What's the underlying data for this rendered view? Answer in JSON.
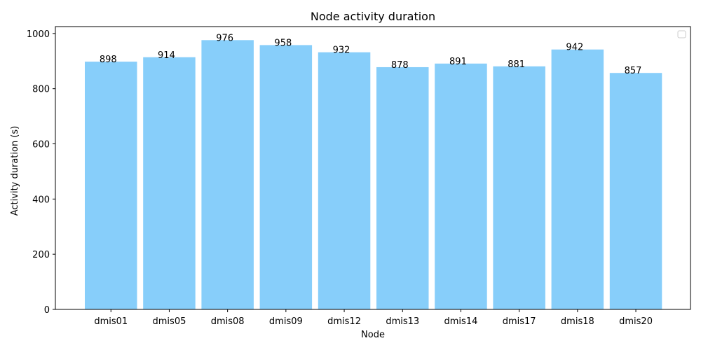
{
  "chart_data": {
    "type": "bar",
    "title": "Node activity duration",
    "xlabel": "Node",
    "ylabel": "Activity duration (s)",
    "categories": [
      "dmis01",
      "dmis05",
      "dmis08",
      "dmis09",
      "dmis12",
      "dmis13",
      "dmis14",
      "dmis17",
      "dmis18",
      "dmis20"
    ],
    "values": [
      898,
      914,
      976,
      958,
      932,
      878,
      891,
      881,
      942,
      857
    ],
    "data_labels": [
      "898",
      "914",
      "976",
      "958",
      "932",
      "878",
      "891",
      "881",
      "942",
      "857"
    ],
    "ylim": [
      0,
      1025
    ],
    "yticks": [
      0,
      200,
      400,
      600,
      800,
      1000
    ],
    "ytick_labels": [
      "0",
      "200",
      "400",
      "600",
      "800",
      "1000"
    ],
    "bar_color": "#87CEFA",
    "grid": false,
    "legend": {
      "position": "top-right",
      "entries": []
    }
  }
}
